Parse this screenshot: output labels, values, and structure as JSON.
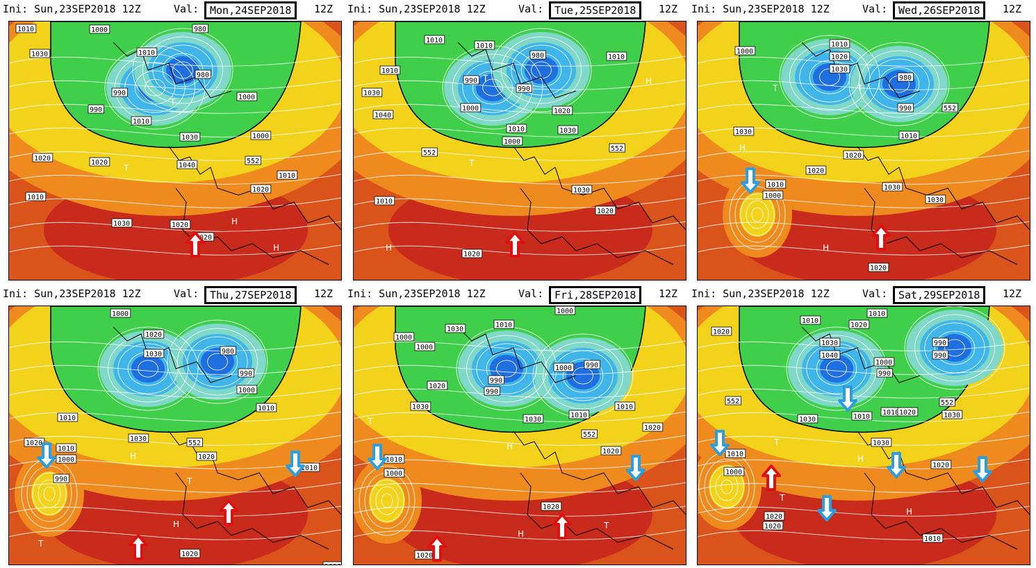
{
  "panels": [
    {
      "ini": "Ini: Sun,23SEP2018 12Z",
      "val_label": "Val:",
      "valid_date": "Mon,24SEP2018",
      "valid_hour": "12Z",
      "labels": [
        "1010",
        "1030",
        "1000",
        "1010",
        "990",
        "980",
        "990",
        "980",
        "1000",
        "1010",
        "1000",
        "1030",
        "1020",
        "1020",
        "1040",
        "552",
        "1010",
        "1020",
        "1010",
        "1030",
        "1020",
        "1020",
        "H",
        "T",
        "T",
        "H"
      ],
      "arrows": [
        {
          "dir": "up",
          "color": "red"
        }
      ]
    },
    {
      "ini": "Ini: Sun,23SEP2018 12Z",
      "val_label": "Val:",
      "valid_date": "Tue,25SEP2018",
      "valid_hour": "12Z",
      "labels": [
        "1010",
        "1030",
        "1040",
        "1010",
        "1010",
        "990",
        "980",
        "990",
        "1000",
        "1010",
        "1000",
        "1020",
        "1030",
        "1010",
        "552",
        "1030",
        "1020",
        "1020",
        "1010",
        "552",
        "H",
        "T",
        "T",
        "H"
      ],
      "arrows": [
        {
          "dir": "up",
          "color": "red"
        }
      ]
    },
    {
      "ini": "Ini: Sun,23SEP2018 12Z",
      "val_label": "Val:",
      "valid_date": "Wed,26SEP2018",
      "valid_hour": "12Z",
      "labels": [
        "1000",
        "1010",
        "1020",
        "1030",
        "980",
        "990",
        "552",
        "1010",
        "1030",
        "1020",
        "1020",
        "1010",
        "1000",
        "1030",
        "1030",
        "1020",
        "H",
        "T",
        "T",
        "H"
      ],
      "arrows": [
        {
          "dir": "down",
          "color": "blue"
        },
        {
          "dir": "up",
          "color": "red"
        }
      ]
    },
    {
      "ini": "Ini: Sun,23SEP2018 12Z",
      "val_label": "Val:",
      "valid_date": "Thu,27SEP2018",
      "valid_hour": "12Z",
      "labels": [
        "1000",
        "1020",
        "1030",
        "980",
        "990",
        "1000",
        "1010",
        "1010",
        "1030",
        "552",
        "1020",
        "1020",
        "1010",
        "1000",
        "990",
        "1010",
        "1020",
        "1010",
        "H",
        "T",
        "T",
        "H"
      ],
      "arrows": [
        {
          "dir": "down",
          "color": "blue"
        },
        {
          "dir": "down",
          "color": "blue"
        },
        {
          "dir": "up",
          "color": "red"
        },
        {
          "dir": "up",
          "color": "red"
        }
      ]
    },
    {
      "ini": "Ini: Sun,23SEP2018 12Z",
      "val_label": "Val:",
      "valid_date": "Fri,28SEP2018",
      "valid_hour": "12Z",
      "labels": [
        "1000",
        "1030",
        "1000",
        "1010",
        "1000",
        "990",
        "990",
        "1000",
        "990",
        "1010",
        "1020",
        "1030",
        "1030",
        "1010",
        "552",
        "1020",
        "1020",
        "1020",
        "1010",
        "1000",
        "1020",
        "H",
        "T",
        "T",
        "H"
      ],
      "arrows": [
        {
          "dir": "down",
          "color": "blue"
        },
        {
          "dir": "down",
          "color": "blue"
        },
        {
          "dir": "up",
          "color": "red"
        },
        {
          "dir": "up",
          "color": "red"
        }
      ]
    },
    {
      "ini": "Ini: Sun,23SEP2018 12Z",
      "val_label": "Val:",
      "valid_date": "Sat,29SEP2018",
      "valid_hour": "12Z",
      "labels": [
        "1020",
        "1010",
        "1010",
        "1020",
        "1030",
        "1040",
        "1000",
        "990",
        "990",
        "1010",
        "990",
        "552",
        "1030",
        "1010",
        "1020",
        "552",
        "1030",
        "1030",
        "1020",
        "1010",
        "1000",
        "1020",
        "1020",
        "1010",
        "H",
        "T",
        "T",
        "H"
      ],
      "arrows": [
        {
          "dir": "down",
          "color": "blue"
        },
        {
          "dir": "down",
          "color": "blue"
        },
        {
          "dir": "down",
          "color": "blue"
        },
        {
          "dir": "down",
          "color": "blue"
        },
        {
          "dir": "down",
          "color": "blue"
        },
        {
          "dir": "up",
          "color": "red"
        }
      ]
    }
  ],
  "colors": {
    "low_deep": "#1f6fe0",
    "low_mid": "#3fb5ea",
    "cool": "#7fd8c8",
    "green": "#3fcf4a",
    "yellow": "#f2d21a",
    "orange": "#ef8a1e",
    "warm": "#d9531b",
    "hot": "#c4241b",
    "contour": "#ffffff",
    "boundary": "#000000",
    "arrow_red": "#e01010",
    "arrow_blue": "#2a9ee0"
  }
}
